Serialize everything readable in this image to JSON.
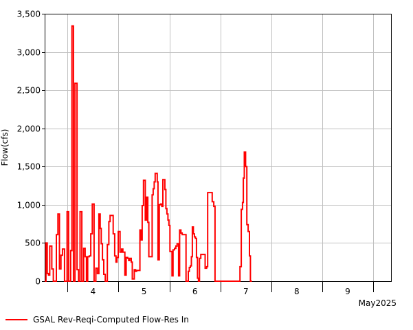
{
  "chart_data": {
    "type": "line",
    "step": true,
    "ylabel": "Flow(cfs)",
    "ylim": [
      0,
      3500
    ],
    "yticks": [
      0,
      500,
      1000,
      1500,
      2000,
      2500,
      3000,
      3500
    ],
    "ytick_labels": [
      "0",
      "500",
      "1,000",
      "1,500",
      "2,000",
      "2,500",
      "3,000",
      "3,500"
    ],
    "xlim": [
      0,
      68
    ],
    "xticks": [
      4.5,
      14.5,
      24.5,
      34.5,
      44.5,
      54.5,
      64.5
    ],
    "xtick_labels": [
      "4",
      "5",
      "6",
      "7",
      "8",
      "9"
    ],
    "xtick_label_positions": [
      9.5,
      19.5,
      29.5,
      39.5,
      49.5,
      59.5
    ],
    "x_period_label": "May2025",
    "grid": true,
    "legend_position": "bottom-left",
    "series": [
      {
        "name": "GSAL Rev-Reqi-Computed Flow-Res In",
        "color": "#ff0000",
        "points": [
          [
            0.0,
            0
          ],
          [
            0.25,
            500
          ],
          [
            0.5,
            100
          ],
          [
            0.75,
            80
          ],
          [
            1.0,
            460
          ],
          [
            1.4,
            160
          ],
          [
            1.7,
            0
          ],
          [
            2.3,
            610
          ],
          [
            2.6,
            880
          ],
          [
            2.9,
            160
          ],
          [
            3.2,
            340
          ],
          [
            3.5,
            420
          ],
          [
            3.9,
            0
          ],
          [
            4.4,
            910
          ],
          [
            4.7,
            0
          ],
          [
            5.1,
            400
          ],
          [
            5.35,
            3340
          ],
          [
            5.65,
            0
          ],
          [
            5.95,
            2590
          ],
          [
            6.35,
            150
          ],
          [
            6.65,
            0
          ],
          [
            6.95,
            910
          ],
          [
            7.3,
            0
          ],
          [
            7.65,
            430
          ],
          [
            7.95,
            320
          ],
          [
            8.2,
            0
          ],
          [
            8.45,
            320
          ],
          [
            8.75,
            330
          ],
          [
            9.05,
            620
          ],
          [
            9.35,
            1010
          ],
          [
            9.7,
            0
          ],
          [
            10.05,
            170
          ],
          [
            10.35,
            100
          ],
          [
            10.65,
            880
          ],
          [
            10.9,
            690
          ],
          [
            11.1,
            490
          ],
          [
            11.35,
            280
          ],
          [
            11.6,
            90
          ],
          [
            11.9,
            0
          ],
          [
            12.3,
            480
          ],
          [
            12.6,
            780
          ],
          [
            12.85,
            860
          ],
          [
            13.2,
            860
          ],
          [
            13.45,
            620
          ],
          [
            13.75,
            330
          ],
          [
            14.0,
            250
          ],
          [
            14.2,
            310
          ],
          [
            14.45,
            650
          ],
          [
            14.8,
            380
          ],
          [
            15.1,
            420
          ],
          [
            15.35,
            380
          ],
          [
            15.6,
            380
          ],
          [
            15.75,
            80
          ],
          [
            16.0,
            310
          ],
          [
            16.3,
            300
          ],
          [
            16.5,
            270
          ],
          [
            16.7,
            300
          ],
          [
            17.0,
            250
          ],
          [
            17.2,
            30
          ],
          [
            17.6,
            150
          ],
          [
            17.85,
            130
          ],
          [
            18.05,
            140
          ],
          [
            18.4,
            140
          ],
          [
            18.7,
            670
          ],
          [
            18.95,
            540
          ],
          [
            19.15,
            990
          ],
          [
            19.4,
            1320
          ],
          [
            19.75,
            800
          ],
          [
            20.0,
            1100
          ],
          [
            20.25,
            770
          ],
          [
            20.45,
            320
          ],
          [
            21.1,
            1130
          ],
          [
            21.3,
            1210
          ],
          [
            21.5,
            1300
          ],
          [
            21.7,
            1410
          ],
          [
            22.1,
            1300
          ],
          [
            22.25,
            280
          ],
          [
            22.5,
            1000
          ],
          [
            22.75,
            1010
          ],
          [
            23.0,
            980
          ],
          [
            23.2,
            1330
          ],
          [
            23.6,
            1200
          ],
          [
            23.8,
            950
          ],
          [
            24.0,
            880
          ],
          [
            24.2,
            800
          ],
          [
            24.4,
            730
          ],
          [
            24.6,
            390
          ],
          [
            25.0,
            70
          ],
          [
            25.2,
            410
          ],
          [
            25.5,
            430
          ],
          [
            25.75,
            460
          ],
          [
            26.0,
            490
          ],
          [
            26.3,
            70
          ],
          [
            26.5,
            670
          ],
          [
            26.75,
            630
          ],
          [
            27.0,
            610
          ],
          [
            27.5,
            610
          ],
          [
            27.75,
            0
          ],
          [
            28.2,
            130
          ],
          [
            28.4,
            180
          ],
          [
            28.6,
            200
          ],
          [
            28.8,
            320
          ],
          [
            29.0,
            710
          ],
          [
            29.2,
            620
          ],
          [
            29.4,
            580
          ],
          [
            29.6,
            560
          ],
          [
            29.8,
            310
          ],
          [
            30.0,
            40
          ],
          [
            30.2,
            0
          ],
          [
            30.4,
            300
          ],
          [
            30.65,
            350
          ],
          [
            31.5,
            170
          ],
          [
            31.8,
            190
          ],
          [
            32.0,
            1160
          ],
          [
            32.9,
            1040
          ],
          [
            33.2,
            980
          ],
          [
            33.45,
            0
          ],
          [
            38.1,
            0
          ],
          [
            38.35,
            190
          ],
          [
            38.6,
            940
          ],
          [
            38.85,
            1030
          ],
          [
            39.0,
            1350
          ],
          [
            39.2,
            1690
          ],
          [
            39.45,
            1500
          ],
          [
            39.7,
            740
          ],
          [
            39.95,
            650
          ],
          [
            40.2,
            330
          ],
          [
            40.4,
            0
          ],
          [
            40.7,
            0
          ]
        ]
      }
    ]
  },
  "legend": {
    "label": "GSAL Rev-Reqi-Computed Flow-Res In"
  }
}
